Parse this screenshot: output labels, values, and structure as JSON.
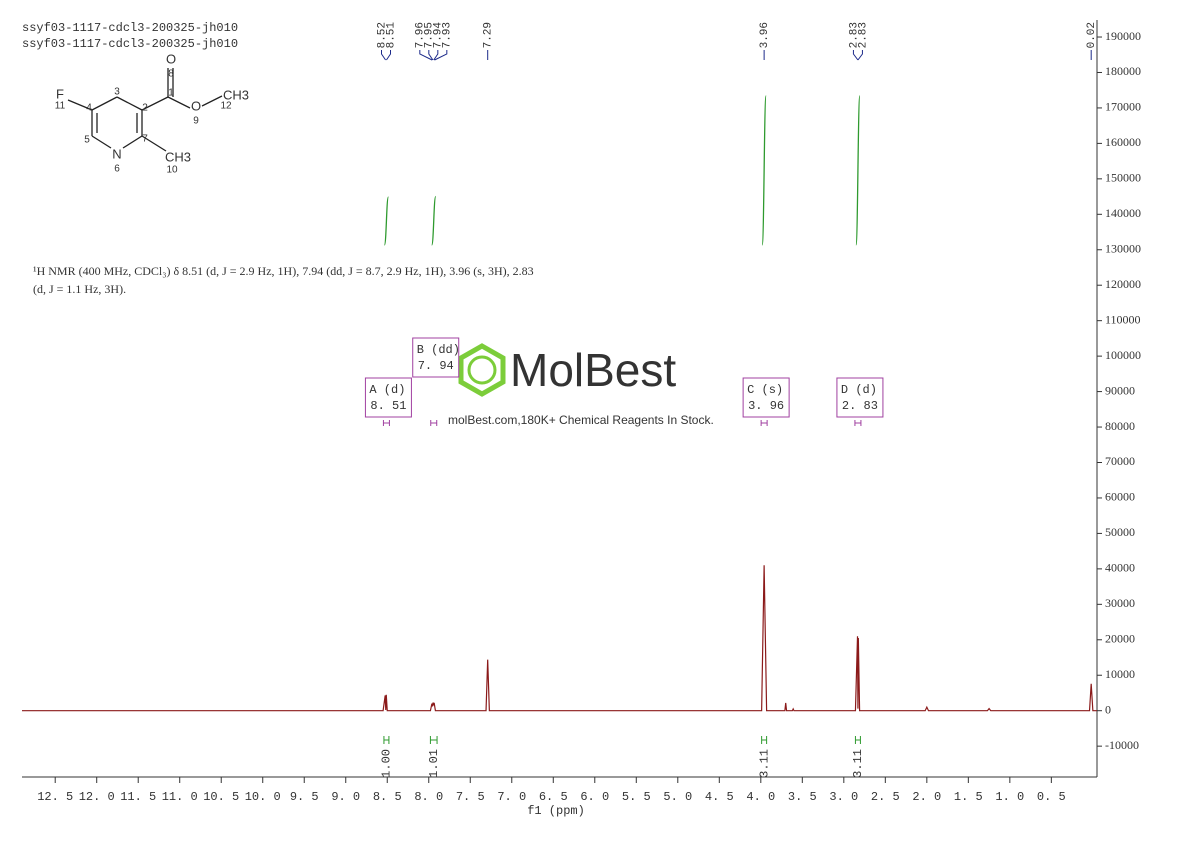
{
  "chart_data": {
    "type": "line",
    "header_lines": [
      "ssyf03-1117-cdcl3-200325-jh010",
      "ssyf03-1117-cdcl3-200325-jh010"
    ],
    "xlabel": "f1  (ppm)",
    "color": "#8b1a1a",
    "x": [
      12.9,
      8.55,
      8.525,
      8.518,
      8.512,
      8.5,
      7.98,
      7.962,
      7.955,
      7.948,
      7.942,
      7.935,
      7.928,
      7.92,
      7.31,
      7.29,
      7.27,
      3.99,
      3.96,
      3.93,
      3.71,
      3.7,
      3.69,
      3.62,
      3.61,
      3.6,
      2.86,
      2.835,
      2.83,
      2.825,
      2.81,
      2.02,
      2.0,
      1.98,
      1.27,
      1.25,
      1.23,
      0.04,
      0.02,
      0.0,
      -0.05
    ],
    "values": [
      0,
      0,
      4300,
      200,
      4500,
      0,
      0,
      2000,
      1200,
      2300,
      1500,
      2200,
      1200,
      0,
      0,
      14400,
      0,
      0,
      41000,
      0,
      0,
      2200,
      0,
      0,
      500,
      0,
      0,
      21000,
      600,
      20500,
      0,
      0,
      1000,
      0,
      0,
      600,
      0,
      0,
      7600,
      0,
      0
    ],
    "xlim": [
      12.9,
      -0.05
    ],
    "ylim": [
      -18700,
      194800
    ],
    "xticks": [
      {
        "value": 12.5,
        "label": "12. 5"
      },
      {
        "value": 12,
        "label": "12. 0"
      },
      {
        "value": 11.5,
        "label": "11. 5"
      },
      {
        "value": 11,
        "label": "11. 0"
      },
      {
        "value": 10.5,
        "label": "10. 5"
      },
      {
        "value": 10,
        "label": "10. 0"
      },
      {
        "value": 9.5,
        "label": "9. 5"
      },
      {
        "value": 9,
        "label": "9. 0"
      },
      {
        "value": 8.5,
        "label": "8. 5"
      },
      {
        "value": 8,
        "label": "8. 0"
      },
      {
        "value": 7.5,
        "label": "7. 5"
      },
      {
        "value": 7,
        "label": "7. 0"
      },
      {
        "value": 6.5,
        "label": "6. 5"
      },
      {
        "value": 6,
        "label": "6. 0"
      },
      {
        "value": 5.5,
        "label": "5. 5"
      },
      {
        "value": 5,
        "label": "5. 0"
      },
      {
        "value": 4.5,
        "label": "4. 5"
      },
      {
        "value": 4,
        "label": "4. 0"
      },
      {
        "value": 3.5,
        "label": "3. 5"
      },
      {
        "value": 3,
        "label": "3. 0"
      },
      {
        "value": 2.5,
        "label": "2. 5"
      },
      {
        "value": 2,
        "label": "2. 0"
      },
      {
        "value": 1.5,
        "label": "1. 5"
      },
      {
        "value": 1,
        "label": "1. 0"
      },
      {
        "value": 0.5,
        "label": "0. 5"
      }
    ],
    "yticks": [
      190000,
      180000,
      170000,
      160000,
      150000,
      140000,
      130000,
      120000,
      110000,
      100000,
      90000,
      80000,
      70000,
      60000,
      50000,
      40000,
      30000,
      20000,
      10000,
      0,
      -10000
    ],
    "peak_labels": [
      8.52,
      8.51,
      7.96,
      7.95,
      7.94,
      7.93,
      7.29,
      3.96,
      2.83,
      2.83,
      0.02
    ],
    "annotation": [
      "¹H NMR (400 MHz, CDCl₃) δ 8.51 (d, J = 2.9 Hz, 1H), 7.94 (dd, J = 8.7, 2.9 Hz, 1H), 3.96 (s, 3H), 2.83",
      "(d, J = 1.1 Hz, 3H)."
    ],
    "multiplets": [
      {
        "name": "A (d)",
        "shift": {
          "value": 8.51,
          "label": "8. 51"
        }
      },
      {
        "name": "B (dd)",
        "shift": {
          "value": 7.94,
          "label": "7. 94"
        }
      },
      {
        "name": "C (s)",
        "shift": {
          "value": 3.96,
          "label": "3. 96"
        }
      },
      {
        "name": "D (d)",
        "shift": {
          "value": 2.83,
          "label": "2. 83"
        }
      }
    ],
    "integrals": [
      {
        "from": 8.54,
        "to": 8.48,
        "area": {
          "value": 1,
          "label": "1.00"
        }
      },
      {
        "from": 7.98,
        "to": 7.9,
        "area": {
          "value": 1.01,
          "label": "1.01"
        }
      },
      {
        "from": 3.99,
        "to": 3.93,
        "area": {
          "value": 3.11,
          "label": "3.11"
        }
      },
      {
        "from": 2.86,
        "to": 2.8,
        "area": {
          "value": 3.11,
          "label": "3.11"
        }
      }
    ],
    "integral_color": "#2e9a2e",
    "structure_atoms": [
      "O",
      "8",
      "1",
      "O",
      "9",
      "CH3",
      "12",
      "F",
      "11",
      "4",
      "3",
      "2",
      "7",
      "5",
      "N",
      "6",
      "CH3",
      "10"
    ],
    "watermark": {
      "brand": "MolBest",
      "tagline": "molBest.com,180K+ Chemical Reagents In Stock."
    }
  }
}
